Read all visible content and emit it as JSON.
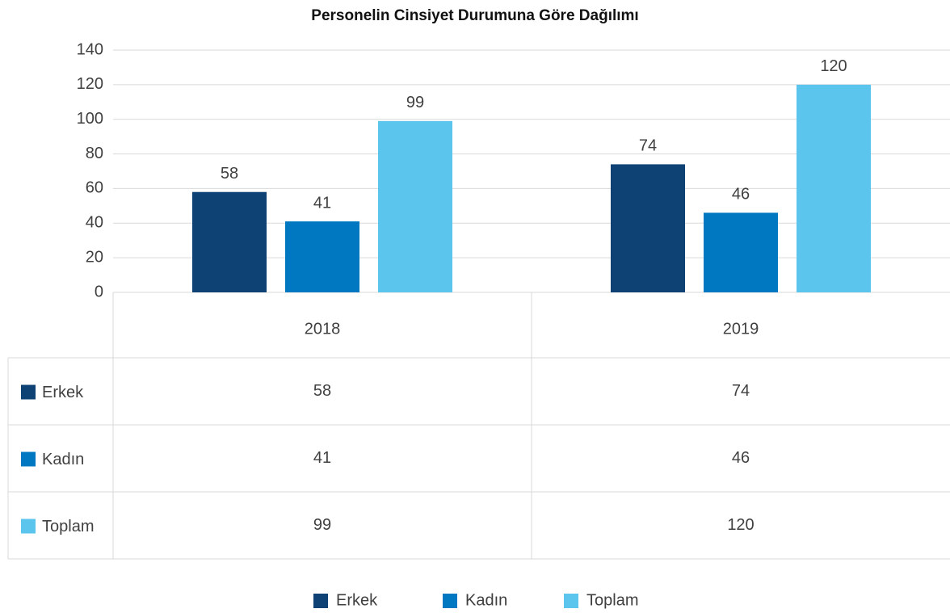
{
  "chart_data": {
    "type": "bar",
    "title": "Personelin Cinsiyet Durumuna Göre Dağılımı",
    "categories": [
      "2018",
      "2019"
    ],
    "series": [
      {
        "name": "Erkek",
        "color": "#0e4174",
        "values": [
          58,
          74
        ]
      },
      {
        "name": "Kadın",
        "color": "#0078c1",
        "values": [
          41,
          46
        ]
      },
      {
        "name": "Toplam",
        "color": "#5bc5ed",
        "values": [
          99,
          120
        ]
      }
    ],
    "ylim": [
      0,
      140
    ],
    "yticks": [
      0,
      20,
      40,
      60,
      80,
      100,
      120,
      140
    ],
    "grid": true,
    "legend": "bottom",
    "data_table": true
  }
}
